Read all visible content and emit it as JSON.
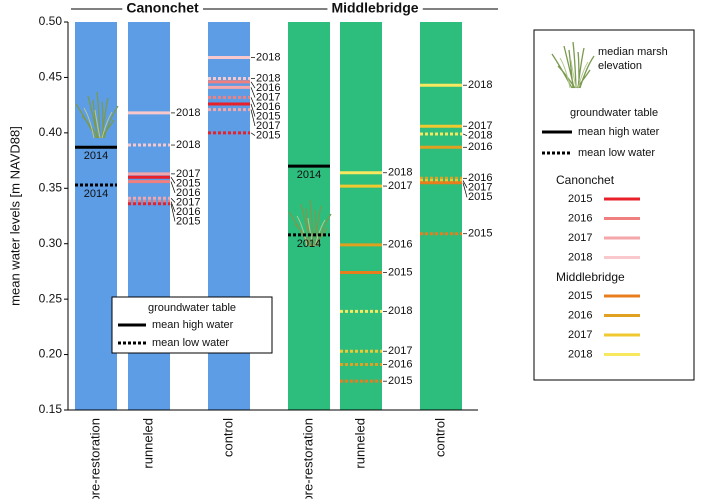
{
  "chart_data": {
    "type": "levels",
    "ylabel": "mean water levels [m NAVD88]",
    "ylim": [
      0.15,
      0.5
    ],
    "yticks": [
      {
        "value": 0.15,
        "label": "0.15"
      },
      {
        "value": 0.2,
        "label": "0.20"
      },
      {
        "value": 0.25,
        "label": "0.25"
      },
      {
        "value": 0.3,
        "label": "0.30"
      },
      {
        "value": 0.35,
        "label": "0.35"
      },
      {
        "value": 0.4,
        "label": "0.40"
      },
      {
        "value": 0.45,
        "label": "0.45"
      },
      {
        "value": 0.5,
        "label": "0.50"
      }
    ],
    "sites": [
      {
        "name": "Canonchet",
        "color": "#5c9de6",
        "columns": [
          {
            "name": "pre-restoration",
            "lines": [
              {
                "label": "2014",
                "kind": "high",
                "color": "#000000",
                "value": 0.387
              },
              {
                "label": "2014",
                "kind": "low",
                "color": "#000000",
                "value": 0.353
              }
            ]
          },
          {
            "name": "runneled",
            "lines": [
              {
                "label": "2018",
                "kind": "high",
                "color": "#f8c8cc",
                "value": 0.418
              },
              {
                "label": "2018",
                "kind": "low",
                "color": "#f8c8cc",
                "value": 0.389
              },
              {
                "label": "2017",
                "kind": "high",
                "color": "#f4a6aa",
                "value": 0.363
              },
              {
                "label": "2015",
                "kind": "high",
                "color": "#e8202a",
                "value": 0.36
              },
              {
                "label": "2016",
                "kind": "high",
                "color": "#f08080",
                "value": 0.356
              },
              {
                "label": "2017",
                "kind": "low",
                "color": "#f4a6aa",
                "value": 0.341
              },
              {
                "label": "2016",
                "kind": "low",
                "color": "#f08080",
                "value": 0.338
              },
              {
                "label": "2015",
                "kind": "low",
                "color": "#e8202a",
                "value": 0.336
              }
            ]
          },
          {
            "name": "control",
            "lines": [
              {
                "label": "2018",
                "kind": "high",
                "color": "#f8c8cc",
                "value": 0.468
              },
              {
                "label": "2018",
                "kind": "low",
                "color": "#f8c8cc",
                "value": 0.449
              },
              {
                "label": "2016",
                "kind": "high",
                "color": "#f08080",
                "value": 0.446
              },
              {
                "label": "2017",
                "kind": "high",
                "color": "#f4a6aa",
                "value": 0.441
              },
              {
                "label": "2016",
                "kind": "low",
                "color": "#f08080",
                "value": 0.432
              },
              {
                "label": "2015",
                "kind": "high",
                "color": "#e8202a",
                "value": 0.426
              },
              {
                "label": "2017",
                "kind": "low",
                "color": "#f4a6aa",
                "value": 0.421
              },
              {
                "label": "2015",
                "kind": "low",
                "color": "#e8202a",
                "value": 0.4
              }
            ]
          }
        ]
      },
      {
        "name": "Middlebridge",
        "color": "#2dbd7d",
        "columns": [
          {
            "name": "pre-restoration",
            "lines": [
              {
                "label": "2014",
                "kind": "high",
                "color": "#000000",
                "value": 0.37
              },
              {
                "label": "2014",
                "kind": "low",
                "color": "#000000",
                "value": 0.308
              }
            ]
          },
          {
            "name": "runneled",
            "lines": [
              {
                "label": "2018",
                "kind": "high",
                "color": "#f8e860",
                "value": 0.364
              },
              {
                "label": "2017",
                "kind": "high",
                "color": "#f0c830",
                "value": 0.352
              },
              {
                "label": "2016",
                "kind": "high",
                "color": "#e0a020",
                "value": 0.299
              },
              {
                "label": "2015",
                "kind": "high",
                "color": "#e87d1e",
                "value": 0.274
              },
              {
                "label": "2018",
                "kind": "low",
                "color": "#f8e860",
                "value": 0.239
              },
              {
                "label": "2017",
                "kind": "low",
                "color": "#f0c830",
                "value": 0.203
              },
              {
                "label": "2016",
                "kind": "low",
                "color": "#e0a020",
                "value": 0.191
              },
              {
                "label": "2015",
                "kind": "low",
                "color": "#e87d1e",
                "value": 0.176
              }
            ]
          },
          {
            "name": "control",
            "lines": [
              {
                "label": "2018",
                "kind": "high",
                "color": "#f8e860",
                "value": 0.443
              },
              {
                "label": "2017",
                "kind": "high",
                "color": "#f0c830",
                "value": 0.406
              },
              {
                "label": "2018",
                "kind": "low",
                "color": "#f8e860",
                "value": 0.399
              },
              {
                "label": "2016",
                "kind": "high",
                "color": "#e0a020",
                "value": 0.387
              },
              {
                "label": "2016",
                "kind": "low",
                "color": "#e0a020",
                "value": 0.359
              },
              {
                "label": "2017",
                "kind": "low",
                "color": "#f0c830",
                "value": 0.357
              },
              {
                "label": "2015",
                "kind": "high",
                "color": "#e87d1e",
                "value": 0.355
              },
              {
                "label": "2015",
                "kind": "low",
                "color": "#e87d1e",
                "value": 0.309
              }
            ]
          }
        ]
      }
    ],
    "legend": {
      "marsh": "median marsh elevation",
      "groundwater": "groundwater table",
      "high": "mean high water",
      "low": "mean low water",
      "groups": [
        {
          "name": "Canonchet",
          "entries": [
            {
              "label": "2015",
              "color": "#e8202a"
            },
            {
              "label": "2016",
              "color": "#f08080"
            },
            {
              "label": "2017",
              "color": "#f4a6aa"
            },
            {
              "label": "2018",
              "color": "#f8c8cc"
            }
          ]
        },
        {
          "name": "Middlebridge",
          "entries": [
            {
              "label": "2015",
              "color": "#e87d1e"
            },
            {
              "label": "2016",
              "color": "#e0a020"
            },
            {
              "label": "2017",
              "color": "#f0c830"
            },
            {
              "label": "2018",
              "color": "#f8e860"
            }
          ]
        }
      ]
    }
  }
}
